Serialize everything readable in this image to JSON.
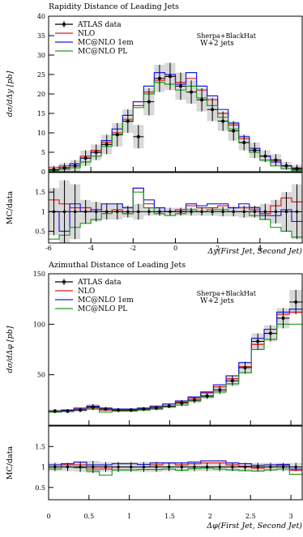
{
  "figure": {
    "panels": [
      {
        "title": "Rapidity Distance of Leading Jets",
        "ylabel": "dσ/dΔy [pb]",
        "ratio_ylabel": "MC/data",
        "xlabel": "Δy(First Jet, Second Jet)",
        "generator_label": "Sherpa+BlackHat",
        "process_label": "W+2 jets",
        "xlim": [
          -6,
          6
        ],
        "ylim": [
          0,
          40
        ],
        "ratio_ylim": [
          0.2,
          2.0
        ],
        "x_ticks": [
          -6,
          -4,
          -2,
          0,
          2,
          4
        ],
        "y_ticks": [
          0,
          5,
          10,
          15,
          20,
          25,
          30,
          35,
          40
        ],
        "ratio_ticks": [
          0.5,
          1,
          1.5
        ],
        "legend": [
          "ATLAS data",
          "NLO",
          "MC@NLO 1em",
          "MC@NLO PL"
        ]
      },
      {
        "title": "Azimuthal Distance of Leading Jets",
        "ylabel": "dσ/dΔφ [pb]",
        "ratio_ylabel": "MC/data",
        "xlabel": "Δφ(First Jet, Second Jet)",
        "generator_label": "Sherpa+BlackHat",
        "process_label": "W+2 jets",
        "xlim": [
          0,
          3.14
        ],
        "ylim": [
          0,
          150
        ],
        "ratio_ylim": [
          0.2,
          2.0
        ],
        "x_ticks": [
          0,
          0.5,
          1,
          1.5,
          2,
          2.5,
          3
        ],
        "y_ticks": [
          50,
          100,
          150
        ],
        "ratio_ticks": [
          0.5,
          1,
          1.5
        ],
        "legend": [
          "ATLAS data",
          "NLO",
          "MC@NLO 1em",
          "MC@NLO PL"
        ]
      }
    ]
  },
  "chart_data": [
    {
      "type": "step-histogram",
      "title": "Rapidity Distance of Leading Jets",
      "xlabel": "Δy(First Jet, Second Jet)",
      "ylabel": "dσ/dΔy [pb]",
      "xlim": [
        -6,
        6
      ],
      "ylim": [
        0,
        40
      ],
      "log_scale": false,
      "legend_position": "top-left",
      "bin_edges": [
        -6.0,
        -5.5,
        -5.0,
        -4.5,
        -4.0,
        -3.5,
        -3.0,
        -2.5,
        -2.0,
        -1.5,
        -1.0,
        -0.5,
        0.0,
        0.5,
        1.0,
        1.5,
        2.0,
        2.5,
        3.0,
        3.5,
        4.0,
        4.5,
        5.0,
        5.5,
        6.0
      ],
      "data": {
        "name": "ATLAS data",
        "color": "#000000",
        "values": [
          0.5,
          1.0,
          1.5,
          3.5,
          5.0,
          7.0,
          9.5,
          13.0,
          9.0,
          18.0,
          24.0,
          24.5,
          22.0,
          20.5,
          18.5,
          16.0,
          13.0,
          10.5,
          7.5,
          5.5,
          4.0,
          3.0,
          1.5,
          0.8
        ],
        "errors": [
          1.0,
          1.2,
          1.5,
          2.0,
          2.0,
          2.5,
          3.0,
          3.0,
          3.0,
          3.5,
          3.5,
          3.5,
          3.5,
          3.0,
          3.0,
          3.0,
          2.5,
          2.5,
          2.0,
          2.0,
          1.5,
          1.5,
          1.0,
          1.0
        ]
      },
      "series": [
        {
          "name": "NLO",
          "color": "#e0191c",
          "values": [
            1.0,
            1.5,
            2.0,
            4.0,
            5.5,
            7.5,
            10.0,
            13.5,
            17.0,
            20.5,
            23.5,
            24.5,
            23.0,
            24.0,
            21.0,
            18.5,
            15.0,
            12.0,
            8.5,
            6.0,
            4.0,
            3.0,
            1.5,
            1.0
          ]
        },
        {
          "name": "MC@NLO 1em",
          "color": "#1c1ce0",
          "values": [
            0.5,
            1.0,
            2.0,
            3.5,
            5.0,
            8.0,
            11.0,
            14.5,
            18.0,
            22.0,
            25.5,
            25.0,
            22.5,
            25.5,
            22.0,
            19.5,
            16.0,
            12.5,
            9.0,
            6.0,
            4.0,
            2.5,
            1.5,
            0.6
          ]
        },
        {
          "name": "MC@NLO PL",
          "color": "#1e9c1e",
          "values": [
            0.3,
            0.6,
            1.0,
            2.5,
            4.0,
            6.5,
            9.5,
            13.0,
            16.5,
            20.0,
            23.0,
            22.5,
            21.0,
            22.0,
            19.0,
            17.0,
            14.0,
            11.0,
            7.5,
            5.0,
            3.0,
            1.5,
            0.8,
            0.3
          ]
        }
      ],
      "ratio": {
        "ylabel": "MC/data",
        "ylim": [
          0.2,
          2.0
        ],
        "data_band": [
          0.6,
          0.8,
          0.7,
          0.3,
          0.25,
          0.2,
          0.2,
          0.15,
          0.2,
          0.1,
          0.1,
          0.1,
          0.1,
          0.1,
          0.1,
          0.1,
          0.12,
          0.12,
          0.15,
          0.15,
          0.2,
          0.3,
          0.5,
          0.7
        ],
        "series": [
          {
            "name": "NLO",
            "values": [
              1.3,
              1.2,
              1.1,
              1.1,
              1.05,
              1.0,
              1.05,
              0.95,
              1.6,
              1.2,
              1.0,
              1.0,
              1.05,
              1.15,
              1.1,
              1.1,
              1.15,
              1.1,
              1.1,
              1.05,
              0.95,
              1.15,
              1.35,
              1.25
            ]
          },
          {
            "name": "MC@NLO 1em",
            "values": [
              1.0,
              0.5,
              1.2,
              1.0,
              1.05,
              1.2,
              1.2,
              1.1,
              1.6,
              1.3,
              1.1,
              1.0,
              1.0,
              1.2,
              1.15,
              1.2,
              1.2,
              1.1,
              1.2,
              1.1,
              0.9,
              0.9,
              1.05,
              0.75
            ]
          },
          {
            "name": "MC@NLO PL",
            "values": [
              0.3,
              0.4,
              0.6,
              0.7,
              0.8,
              0.95,
              1.0,
              0.95,
              1.5,
              1.1,
              0.95,
              0.9,
              0.95,
              1.05,
              1.0,
              1.05,
              1.05,
              1.0,
              1.0,
              0.9,
              0.8,
              0.6,
              0.5,
              0.35
            ]
          }
        ]
      }
    },
    {
      "type": "step-histogram",
      "title": "Azimuthal Distance of Leading Jets",
      "xlabel": "Δφ(First Jet, Second Jet)",
      "ylabel": "dσ/dΔφ [pb]",
      "xlim": [
        0,
        3.14
      ],
      "ylim": [
        0,
        150
      ],
      "log_scale": false,
      "legend_position": "top-left",
      "bin_edges": [
        0.0,
        0.157,
        0.314,
        0.471,
        0.628,
        0.785,
        0.942,
        1.099,
        1.256,
        1.413,
        1.57,
        1.727,
        1.884,
        2.041,
        2.198,
        2.355,
        2.512,
        2.669,
        2.826,
        2.983,
        3.14
      ],
      "data": {
        "name": "ATLAS data",
        "color": "#000000",
        "values": [
          14,
          14,
          15,
          18,
          16,
          15,
          15,
          16,
          17,
          19,
          22,
          25,
          29,
          35,
          44,
          57,
          83,
          91,
          106,
          122
        ],
        "errors": [
          2,
          2,
          2,
          3,
          2,
          2,
          2,
          2,
          2,
          2,
          3,
          3,
          3,
          4,
          5,
          6,
          8,
          8,
          10,
          12
        ]
      },
      "series": [
        {
          "name": "NLO",
          "color": "#e0191c",
          "values": [
            14,
            15,
            16,
            17,
            15,
            15,
            15,
            16,
            18,
            21,
            23,
            27,
            32,
            38,
            46,
            58,
            80,
            91,
            110,
            112
          ]
        },
        {
          "name": "MC@NLO 1em",
          "color": "#1c1ce0",
          "values": [
            14,
            15,
            17,
            19,
            17,
            16,
            16,
            17,
            19,
            21,
            24,
            28,
            33,
            40,
            49,
            62,
            86,
            95,
            112,
            115
          ]
        },
        {
          "name": "MC@NLO PL",
          "color": "#1e9c1e",
          "values": [
            13,
            14,
            15,
            16,
            13,
            14,
            14,
            15,
            16,
            18,
            20,
            24,
            28,
            33,
            41,
            52,
            75,
            85,
            100,
            100
          ]
        }
      ],
      "ratio": {
        "ylabel": "MC/data",
        "ylim": [
          0.2,
          2.0
        ],
        "data_band": [
          0.1,
          0.1,
          0.12,
          0.15,
          0.12,
          0.12,
          0.12,
          0.12,
          0.12,
          0.1,
          0.1,
          0.1,
          0.1,
          0.1,
          0.1,
          0.1,
          0.1,
          0.1,
          0.1,
          0.1
        ],
        "series": [
          {
            "name": "NLO",
            "values": [
              1.0,
              1.05,
              1.05,
              0.95,
              0.95,
              1.0,
              1.0,
              1.0,
              1.05,
              1.1,
              1.05,
              1.08,
              1.1,
              1.1,
              1.05,
              1.02,
              0.97,
              1.0,
              1.04,
              0.92
            ]
          },
          {
            "name": "MC@NLO 1em",
            "values": [
              1.05,
              1.08,
              1.12,
              1.05,
              1.05,
              1.08,
              1.08,
              1.06,
              1.1,
              1.1,
              1.1,
              1.12,
              1.15,
              1.15,
              1.1,
              1.08,
              1.04,
              1.05,
              1.06,
              0.95
            ]
          },
          {
            "name": "MC@NLO PL",
            "values": [
              0.95,
              1.0,
              0.98,
              0.9,
              0.8,
              0.93,
              0.93,
              0.94,
              0.94,
              0.95,
              0.92,
              0.96,
              0.97,
              0.95,
              0.93,
              0.91,
              0.9,
              0.93,
              0.95,
              0.82
            ]
          }
        ]
      }
    }
  ]
}
